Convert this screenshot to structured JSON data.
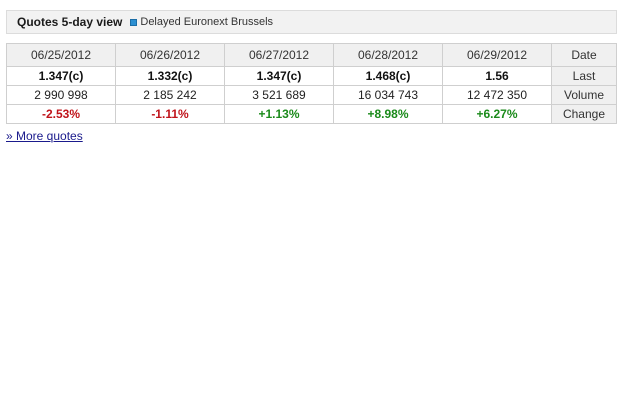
{
  "header": {
    "title": "Quotes 5-day view",
    "source": "Delayed Euronext Brussels"
  },
  "table": {
    "row_labels": {
      "date": "Date",
      "last": "Last",
      "volume": "Volume",
      "change": "Change"
    },
    "columns": [
      {
        "date": "06/25/2012",
        "last": "1.347(c)",
        "volume": "2 990 998",
        "change": "-2.53%"
      },
      {
        "date": "06/26/2012",
        "last": "1.332(c)",
        "volume": "2 185 242",
        "change": "-1.11%"
      },
      {
        "date": "06/27/2012",
        "last": "1.347(c)",
        "volume": "3 521 689",
        "change": "+1.13%"
      },
      {
        "date": "06/28/2012",
        "last": "1.468(c)",
        "volume": "16 034 743",
        "change": "+8.98%"
      },
      {
        "date": "06/29/2012",
        "last": "1.56",
        "volume": "12 472 350",
        "change": "+6.27%"
      }
    ]
  },
  "more_link": "» More quotes",
  "colors": {
    "negative": "#c0131a",
    "positive": "#1a8a1a",
    "source_icon": "#2c8fd1"
  }
}
